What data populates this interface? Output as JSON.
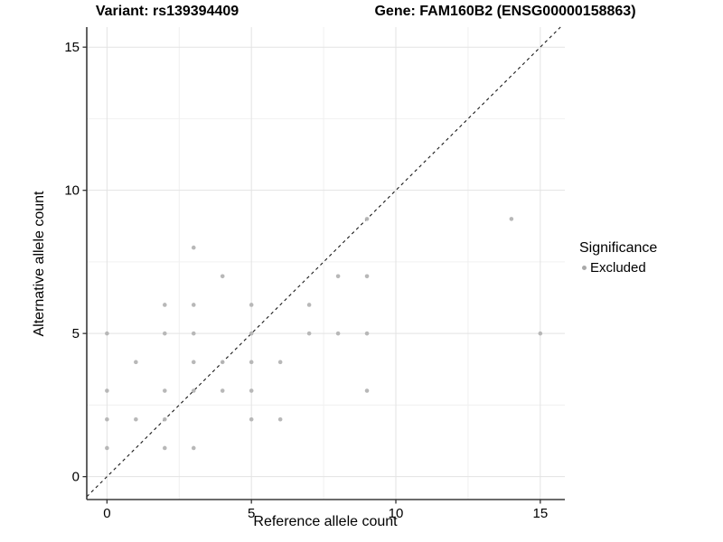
{
  "chart_data": {
    "type": "scatter",
    "title_left": "Variant: rs139394409",
    "title_right": "Gene: FAM160B2 (ENSG00000158863)",
    "xlabel": "Reference allele count",
    "ylabel": "Alternative allele count",
    "x_ticks": [
      0,
      5,
      10,
      15
    ],
    "x_minor_ticks": [
      2.5,
      7.5,
      12.5
    ],
    "y_ticks": [
      0,
      5,
      10,
      15
    ],
    "y_minor_ticks": [
      2.5,
      7.5,
      12.5
    ],
    "xlim": [
      -0.7,
      15.85
    ],
    "ylim": [
      -0.8,
      15.7
    ],
    "grid": true,
    "legend": {
      "title": "Significance",
      "position": "right"
    },
    "identity_line": {
      "slope": 1,
      "intercept": 0,
      "style": "dashed",
      "color": "#1a1a1a"
    },
    "series": [
      {
        "name": "Excluded",
        "color": "#b4b4b4",
        "points": [
          [
            0,
            1
          ],
          [
            0,
            2
          ],
          [
            0,
            3
          ],
          [
            0,
            5
          ],
          [
            1,
            2
          ],
          [
            1,
            4
          ],
          [
            2,
            1
          ],
          [
            2,
            2
          ],
          [
            2,
            3
          ],
          [
            2,
            5
          ],
          [
            2,
            6
          ],
          [
            3,
            1
          ],
          [
            3,
            3
          ],
          [
            3,
            4
          ],
          [
            3,
            5
          ],
          [
            3,
            6
          ],
          [
            3,
            8
          ],
          [
            4,
            3
          ],
          [
            4,
            4
          ],
          [
            4,
            7
          ],
          [
            5,
            2
          ],
          [
            5,
            3
          ],
          [
            5,
            4
          ],
          [
            5,
            5
          ],
          [
            5,
            6
          ],
          [
            6,
            2
          ],
          [
            6,
            4
          ],
          [
            7,
            5
          ],
          [
            7,
            6
          ],
          [
            8,
            5
          ],
          [
            8,
            7
          ],
          [
            9,
            3
          ],
          [
            9,
            5
          ],
          [
            9,
            7
          ],
          [
            9,
            9
          ],
          [
            14,
            9
          ],
          [
            15,
            5
          ]
        ]
      }
    ]
  },
  "colors": {
    "point": "#b4b4b4",
    "legend_dot": "#a9a9a9",
    "grid_major": "#e3e3e3",
    "grid_minor": "#f0f0f0",
    "axis_line": "#3a3a3a",
    "identity_line": "#1a1a1a",
    "background": "#ffffff"
  }
}
